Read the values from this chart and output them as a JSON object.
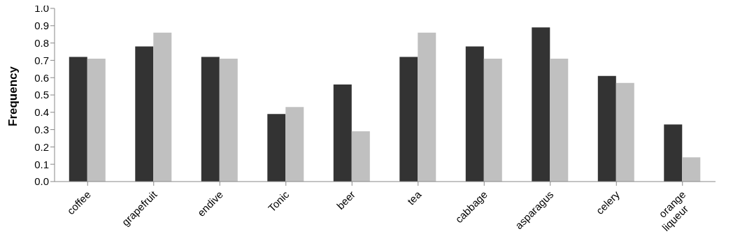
{
  "chart_data": {
    "type": "bar",
    "ylabel": "Frequency",
    "categories": [
      "coffee",
      "grapefruit",
      "endive",
      "Tonic",
      "beer",
      "tea",
      "cabbage",
      "asparagus",
      "celery",
      "orange liqueur"
    ],
    "series": [
      {
        "color": "#333333",
        "values": [
          0.72,
          0.78,
          0.72,
          0.39,
          0.56,
          0.72,
          0.78,
          0.89,
          0.61,
          0.33
        ]
      },
      {
        "color": "#c0c0c0",
        "values": [
          0.71,
          0.86,
          0.71,
          0.43,
          0.29,
          0.86,
          0.71,
          0.71,
          0.57,
          0.14
        ]
      }
    ],
    "ylim": [
      0,
      1
    ],
    "yticks": [
      {
        "value": 0,
        "label": "0.0"
      },
      0.1,
      0.2,
      0.3,
      0.4,
      0.5,
      0.6,
      0.7,
      0.8,
      0.9,
      {
        "value": 1,
        "label": "1.0"
      }
    ],
    "grid": false
  }
}
